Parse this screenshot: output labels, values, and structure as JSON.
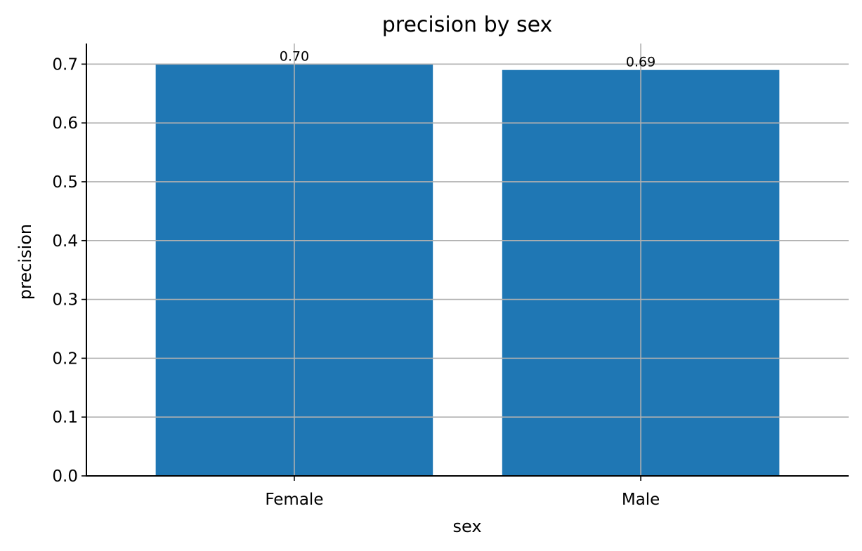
{
  "chart_data": {
    "type": "bar",
    "title": "precision by sex",
    "xlabel": "sex",
    "ylabel": "precision",
    "categories": [
      "Female",
      "Male"
    ],
    "values": [
      0.7,
      0.69
    ],
    "data_labels": [
      "0.70",
      "0.69"
    ],
    "yticks": [
      0.0,
      0.1,
      0.2,
      0.3,
      0.4,
      0.5,
      0.6,
      0.7
    ],
    "ytick_labels": [
      "0.0",
      "0.1",
      "0.2",
      "0.3",
      "0.4",
      "0.5",
      "0.6",
      "0.7"
    ],
    "ylim": [
      0,
      0.735
    ],
    "grid": true,
    "legend": "none",
    "bar_color": "#1f77b4"
  }
}
